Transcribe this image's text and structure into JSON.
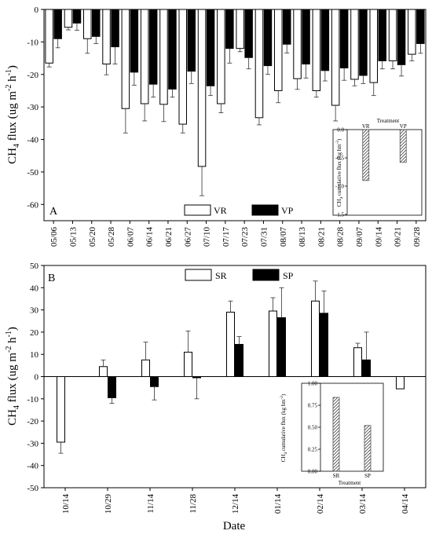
{
  "xlabel": "Date",
  "chart_data": [
    {
      "panel": "A",
      "type": "bar",
      "ylabel": "CH4 flux (ug m-2 h-1)",
      "ylim": [
        -65,
        0
      ],
      "yticks": [
        0,
        -10,
        -20,
        -30,
        -40,
        -50,
        -60
      ],
      "categories": [
        "05/06",
        "05/13",
        "05/20",
        "05/28",
        "06/07",
        "06/14",
        "06/21",
        "06/27",
        "07/10",
        "07/17",
        "07/23",
        "07/31",
        "08/07",
        "08/13",
        "08/21",
        "08/28",
        "09/07",
        "09/14",
        "09/21",
        "09/28"
      ],
      "legend_position": "bottom-center",
      "series": [
        {
          "name": "VR",
          "color": "#ffffff",
          "values": [
            -16.5,
            -5.5,
            -9.0,
            -16.8,
            -30.5,
            -29.0,
            -29.2,
            -35.3,
            -48.3,
            -29.0,
            -12.0,
            -33.3,
            -25.0,
            -21.3,
            -25.0,
            -29.5,
            -21.5,
            -22.5,
            -15.8,
            -13.8
          ],
          "errors": [
            1.2,
            0.8,
            4.5,
            3.3,
            7.5,
            5.3,
            5.3,
            2.7,
            9.0,
            2.8,
            1.0,
            2.2,
            3.7,
            3.3,
            2.0,
            4.8,
            2.0,
            4.0,
            2.5,
            2.0
          ]
        },
        {
          "name": "VP",
          "color": "#000000",
          "values": [
            -9.0,
            -4.2,
            -8.3,
            -11.5,
            -19.3,
            -23.0,
            -24.5,
            -19.0,
            -23.5,
            -12.0,
            -14.8,
            -17.3,
            -10.7,
            -16.8,
            -18.8,
            -18.0,
            -20.3,
            -15.8,
            -17.0,
            -10.5
          ],
          "errors": [
            2.8,
            2.2,
            2.2,
            5.3,
            4.0,
            4.0,
            2.5,
            3.8,
            3.0,
            4.5,
            3.5,
            2.7,
            2.7,
            4.3,
            3.2,
            3.8,
            2.5,
            2.5,
            3.5,
            3.0
          ]
        }
      ]
    },
    {
      "panel": "A-inset",
      "type": "bar",
      "title": "Treatment",
      "ylabel": "CH4 cumulative flux (kg hm-2)",
      "ylim": [
        -1.5,
        0.0
      ],
      "yticks": [
        "0.0",
        "-0.5",
        "-1.0",
        "-1.5"
      ],
      "categories": [
        "VR",
        "VP"
      ],
      "values": [
        -0.9,
        -0.58
      ],
      "pattern": "hatched"
    },
    {
      "panel": "B",
      "type": "bar",
      "ylabel": "CH4 flux (ug m-2 h-1)",
      "ylim": [
        -50,
        50
      ],
      "yticks": [
        50,
        40,
        30,
        20,
        10,
        0,
        -10,
        -20,
        -30,
        -40,
        -50
      ],
      "categories": [
        "10/14",
        "10/29",
        "11/14",
        "11/28",
        "12/14",
        "01/14",
        "02/14",
        "03/14",
        "04/14"
      ],
      "legend_position": "top-center",
      "series": [
        {
          "name": "SR",
          "color": "#ffffff",
          "values": [
            -29.5,
            4.5,
            7.5,
            11.0,
            29.0,
            29.5,
            34.0,
            13.0,
            -5.5
          ],
          "errors": [
            5.0,
            3.0,
            8.0,
            9.5,
            5.0,
            6.0,
            9.0,
            2.0,
            0
          ]
        },
        {
          "name": "SP",
          "color": "#000000",
          "values": [
            null,
            -9.5,
            -4.5,
            -0.5,
            14.5,
            26.5,
            28.5,
            7.5,
            null
          ],
          "errors": [
            0,
            2.5,
            6.0,
            9.5,
            3.5,
            13.5,
            10.0,
            12.5,
            0
          ]
        }
      ]
    },
    {
      "panel": "B-inset",
      "type": "bar",
      "xlabel": "Treatment",
      "ylabel": "CH4 cumulative flux (kg hm-2)",
      "ylim": [
        0,
        1.0
      ],
      "yticks": [
        "0.00",
        "0.25",
        "0.50",
        "0.75",
        "1.00"
      ],
      "categories": [
        "SR",
        "SP"
      ],
      "values": [
        0.84,
        0.52
      ],
      "pattern": "hatched"
    }
  ]
}
